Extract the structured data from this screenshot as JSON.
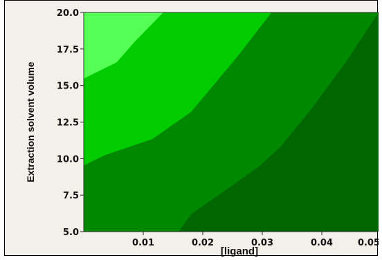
{
  "chart_data": {
    "type": "contour",
    "xlabel": "[ligand]",
    "ylabel": "Extraction solvent volume",
    "xlim": [
      0.0,
      0.05
    ],
    "ylim": [
      5.0,
      20.0
    ],
    "x_ticks": [
      "0.01",
      "0.02",
      "0.03",
      "0.04",
      "0.05"
    ],
    "y_ticks": [
      "5.0",
      "7.5",
      "10.0",
      "12.5",
      "15.0",
      "17.5",
      "20.0"
    ],
    "grid": false,
    "legend": "none",
    "regions": [
      {
        "level": 1,
        "color": "#006600",
        "polygon": [
          [
            0.0159,
            5.0
          ],
          [
            0.05,
            5.0
          ],
          [
            0.05,
            20.0
          ],
          [
            0.0495,
            20.0
          ],
          [
            0.044,
            16.6
          ],
          [
            0.038,
            13.3
          ],
          [
            0.033,
            10.8
          ],
          [
            0.0295,
            9.5
          ],
          [
            0.0245,
            8.05
          ],
          [
            0.018,
            6.2
          ]
        ]
      },
      {
        "level": 2,
        "color": "#008800",
        "polygon": [
          [
            0.0,
            5.0
          ],
          [
            0.0159,
            5.0
          ],
          [
            0.018,
            6.2
          ],
          [
            0.0245,
            8.05
          ],
          [
            0.0295,
            9.5
          ],
          [
            0.033,
            10.8
          ],
          [
            0.038,
            13.3
          ],
          [
            0.044,
            16.6
          ],
          [
            0.0495,
            20.0
          ],
          [
            0.0315,
            20.0
          ],
          [
            0.0258,
            17.0
          ],
          [
            0.018,
            13.2
          ],
          [
            0.0115,
            11.35
          ],
          [
            0.0035,
            10.25
          ],
          [
            0.0,
            9.55
          ]
        ]
      },
      {
        "level": 3,
        "color": "#00cc00",
        "polygon": [
          [
            0.0,
            9.55
          ],
          [
            0.0035,
            10.25
          ],
          [
            0.0115,
            11.35
          ],
          [
            0.018,
            13.2
          ],
          [
            0.0258,
            17.0
          ],
          [
            0.0315,
            20.0
          ],
          [
            0.0133,
            20.0
          ],
          [
            0.0085,
            18.0
          ],
          [
            0.0055,
            16.6
          ],
          [
            0.0,
            15.5
          ]
        ]
      },
      {
        "level": 4,
        "color": "#55ff55",
        "polygon": [
          [
            0.0,
            15.5
          ],
          [
            0.0055,
            16.6
          ],
          [
            0.0085,
            18.0
          ],
          [
            0.0133,
            20.0
          ],
          [
            0.0,
            20.0
          ]
        ]
      }
    ]
  }
}
